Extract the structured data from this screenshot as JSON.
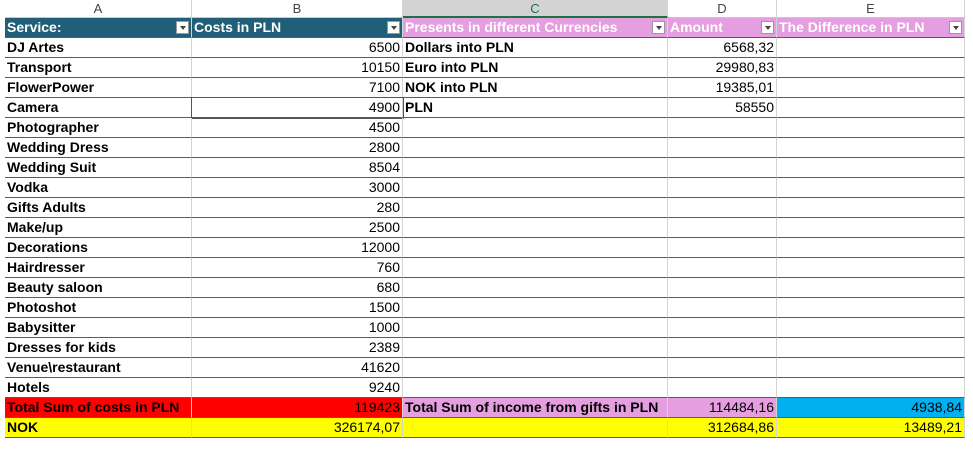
{
  "columns": [
    "A",
    "B",
    "C",
    "D",
    "E"
  ],
  "header": [
    "Service:",
    "Costs in PLN",
    "Presents in different Currencies",
    "Amount",
    "The Difference in PLN"
  ],
  "rows": [
    [
      "DJ Artes",
      "6500",
      "Dollars into PLN",
      "6568,32",
      null
    ],
    [
      "Transport",
      "10150",
      "Euro into PLN",
      "29980,83",
      null
    ],
    [
      "FlowerPower",
      "7100",
      "NOK into PLN",
      "19385,01",
      null
    ],
    [
      "Camera",
      "4900",
      "PLN",
      "58550",
      null
    ],
    [
      "Photographer",
      "4500",
      null,
      null,
      null
    ],
    [
      "Wedding Dress",
      "2800",
      null,
      null,
      null
    ],
    [
      "Wedding Suit",
      "8504",
      null,
      null,
      null
    ],
    [
      "Vodka",
      "3000",
      null,
      null,
      null
    ],
    [
      "Gifts Adults",
      "280",
      null,
      null,
      null
    ],
    [
      "Make/up",
      "2500",
      null,
      null,
      null
    ],
    [
      "Decorations",
      "12000",
      null,
      null,
      null
    ],
    [
      "Hairdresser",
      "760",
      null,
      null,
      null
    ],
    [
      "Beauty saloon",
      "680",
      null,
      null,
      null
    ],
    [
      "Photoshot",
      "1500",
      null,
      null,
      null
    ],
    [
      "Babysitter",
      "1000",
      null,
      null,
      null
    ],
    [
      "Dresses for kids",
      "2389",
      null,
      null,
      null
    ],
    [
      "Venue\\restaurant",
      "41620",
      null,
      null,
      null
    ],
    [
      "Hotels",
      "9240",
      null,
      null,
      null
    ],
    [
      "Total Sum of costs in PLN",
      "119423",
      "Total Sum of income from gifts in PLN",
      "114484,16",
      "4938,84"
    ],
    [
      "NOK",
      "326174,07",
      null,
      "312684,86",
      "13489,21"
    ]
  ]
}
